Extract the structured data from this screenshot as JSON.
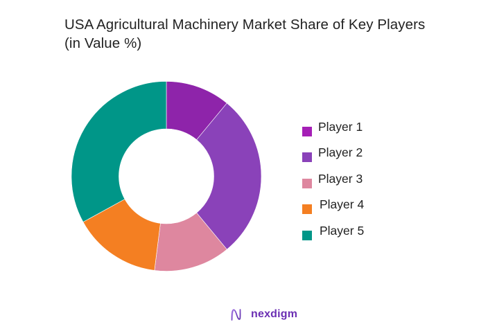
{
  "chart_data": {
    "type": "pie",
    "variant": "donut",
    "title": "USA Agricultural Machinery Market Share of Key Players (in Value %)",
    "categories": [
      "Player 1",
      "Player 2",
      "Player 3",
      "Player 4",
      "Player 5"
    ],
    "values": [
      11,
      28,
      13,
      15,
      33
    ],
    "unit": "%",
    "colors": [
      "#8e24aa",
      "#8a42b9",
      "#de879f",
      "#f47f22",
      "#009688"
    ],
    "legend_colors": [
      "#a51fb6",
      "#8a42b9",
      "#de879f",
      "#f47f22",
      "#009688"
    ],
    "start_angle_deg": 0,
    "direction": "clockwise",
    "legend_position": "right",
    "data_labels": false
  },
  "title": "USA Agricultural Machinery Market Share of Key Players (in Value %)",
  "legend": {
    "items": [
      {
        "label": "Player 1",
        "color": "#a51fb6"
      },
      {
        "label": "Player 2",
        "color": "#8a42b9"
      },
      {
        "label": "Player 3",
        "color": "#de879f"
      },
      {
        "label": "Player 4",
        "color": "#f47f22"
      },
      {
        "label": "Player 5",
        "color": "#009688"
      }
    ]
  },
  "brand": {
    "name": "nexdigm",
    "icon": "nexdigm-logo-icon"
  }
}
